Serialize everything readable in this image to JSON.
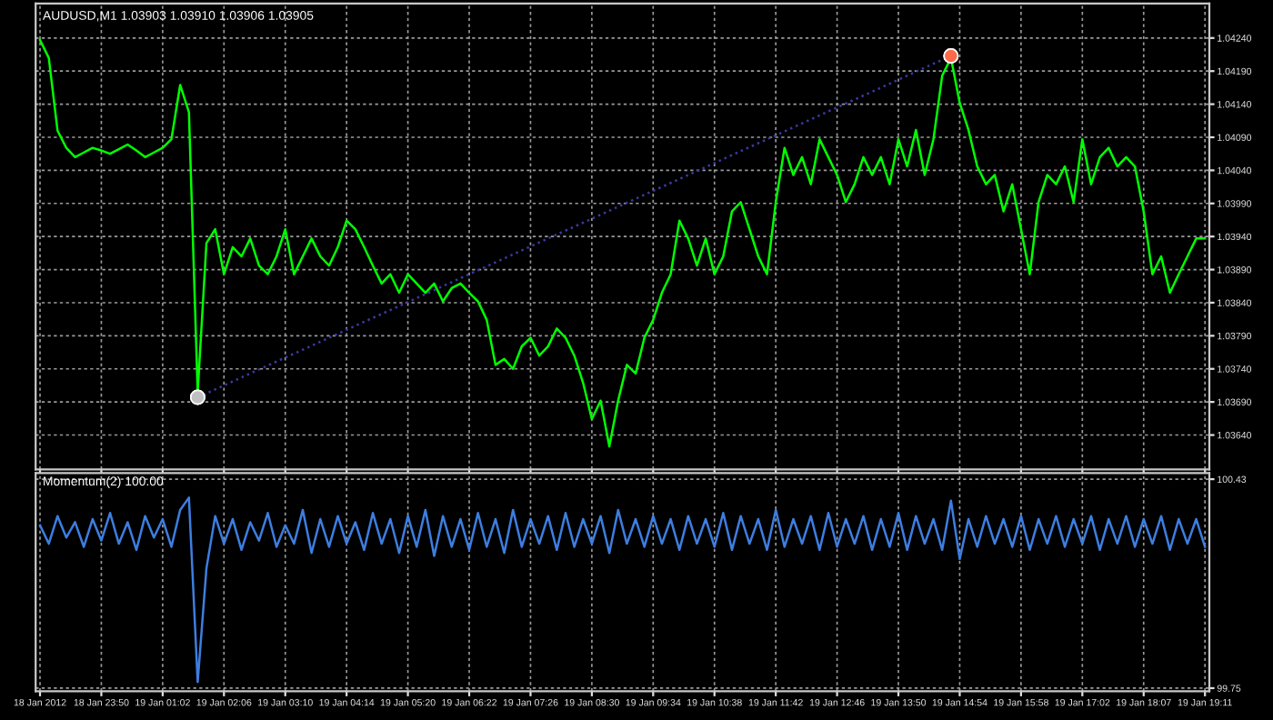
{
  "chart_data": [
    {
      "type": "line",
      "title": "AUDUSD,M1 1.03903 1.03910 1.03906 1.03905",
      "grid": true,
      "tick_labels": "y",
      "ylim": [
        1.03588,
        1.04292
      ],
      "categories": [
        null,
        null,
        null,
        null,
        null,
        null,
        null,
        null,
        null,
        null,
        null,
        null,
        null,
        null,
        null,
        null,
        null,
        null,
        null,
        null,
        null,
        null,
        null,
        null,
        null,
        null,
        null,
        null,
        null,
        null,
        null,
        null,
        null,
        null,
        null,
        null,
        null,
        null,
        null,
        null,
        null,
        null,
        null,
        null,
        null,
        null,
        null,
        null,
        null,
        null,
        null,
        null,
        null,
        null,
        null,
        null,
        null,
        null,
        null,
        null,
        null,
        null,
        null,
        null,
        null,
        null,
        null,
        null,
        null,
        null,
        null,
        null,
        null,
        null,
        null,
        null,
        null,
        null,
        null,
        null,
        null,
        null,
        null,
        null,
        null,
        null,
        null,
        null,
        null,
        null,
        null,
        null,
        null,
        null,
        null,
        null,
        null,
        null,
        null,
        null,
        null,
        null,
        null,
        null,
        null,
        null,
        null,
        null,
        null,
        null,
        null,
        null,
        null,
        null,
        null,
        null,
        null,
        null,
        null,
        null,
        null,
        null,
        null,
        null,
        null,
        null,
        null,
        null,
        null,
        null,
        null,
        null,
        null,
        null
      ],
      "yticks": [
        {
          "value": 1.0424,
          "label": "1.04240"
        },
        {
          "value": 1.0419,
          "label": "1.04190"
        },
        {
          "value": 1.0414,
          "label": "1.04140"
        },
        {
          "value": 1.0409,
          "label": "1.04090"
        },
        {
          "value": 1.0404,
          "label": "1.04040"
        },
        {
          "value": 1.0399,
          "label": "1.03990"
        },
        {
          "value": 1.0394,
          "label": "1.03940"
        },
        {
          "value": 1.0389,
          "label": "1.03890"
        },
        {
          "value": 1.0384,
          "label": "1.03840"
        },
        {
          "value": 1.0379,
          "label": "1.03790"
        },
        {
          "value": 1.0374,
          "label": "1.03740"
        },
        {
          "value": 1.0369,
          "label": "1.03690"
        },
        {
          "value": 1.0364,
          "label": "1.03640"
        }
      ],
      "series": [
        {
          "color": "#00ff00",
          "values": [
            1.04237,
            1.0421,
            1.041,
            1.04074,
            1.0406,
            1.04067,
            1.04074,
            1.0407,
            1.04065,
            1.04072,
            1.04079,
            1.0407,
            1.0406,
            1.04067,
            1.04074,
            1.04087,
            1.04169,
            1.04128,
            1.03705,
            1.0393,
            1.03951,
            1.03883,
            1.03924,
            1.0391,
            1.03937,
            1.03896,
            1.03883,
            1.0391,
            1.03951,
            1.03883,
            1.0391,
            1.03937,
            1.0391,
            1.03896,
            1.03924,
            1.03964,
            1.03951,
            1.03924,
            1.03896,
            1.03869,
            1.03883,
            1.03855,
            1.03883,
            1.03869,
            1.03855,
            1.03869,
            1.03842,
            1.03862,
            1.03869,
            1.03855,
            1.03842,
            1.03814,
            1.03746,
            1.03755,
            1.0374,
            1.03774,
            1.03787,
            1.0376,
            1.03774,
            1.03801,
            1.03787,
            1.0376,
            1.03719,
            1.03664,
            1.03692,
            1.03623,
            1.03692,
            1.03746,
            1.03733,
            1.03787,
            1.03814,
            1.03855,
            1.03883,
            1.03964,
            1.03937,
            1.03896,
            1.03937,
            1.03883,
            1.0391,
            1.03978,
            1.03992,
            1.03951,
            1.0391,
            1.03883,
            1.03992,
            1.04074,
            1.04033,
            1.0406,
            1.04019,
            1.04087,
            1.0406,
            1.04033,
            1.03992,
            1.04019,
            1.0406,
            1.04033,
            1.0406,
            1.04019,
            1.04087,
            1.04046,
            1.04101,
            1.04033,
            1.04087,
            1.04183,
            1.0421,
            1.04142,
            1.04101,
            1.04046,
            1.04019,
            1.04033,
            1.03978,
            1.04019,
            1.03951,
            1.03883,
            1.03992,
            1.04033,
            1.04019,
            1.04046,
            1.03992,
            1.04087,
            1.04019,
            1.0406,
            1.04074,
            1.04046,
            1.0406,
            1.04046,
            1.03978,
            1.03883,
            1.0391,
            1.03855,
            1.03883,
            1.0391,
            1.03937,
            1.03937
          ]
        },
        {
          "color": "#3a3aa0",
          "line_style": "dotted",
          "marker": "circle",
          "colors": [
            null,
            null,
            null,
            null,
            null,
            null,
            null,
            null,
            null,
            null,
            null,
            null,
            null,
            null,
            null,
            null,
            null,
            null,
            "#c0c0c0",
            null,
            null,
            null,
            null,
            null,
            null,
            null,
            null,
            null,
            null,
            null,
            null,
            null,
            null,
            null,
            null,
            null,
            null,
            null,
            null,
            null,
            null,
            null,
            null,
            null,
            null,
            null,
            null,
            null,
            null,
            null,
            null,
            null,
            null,
            null,
            null,
            null,
            null,
            null,
            null,
            null,
            null,
            null,
            null,
            null,
            null,
            null,
            null,
            null,
            null,
            null,
            null,
            null,
            null,
            null,
            null,
            null,
            null,
            null,
            null,
            null,
            null,
            null,
            null,
            null,
            null,
            null,
            null,
            null,
            null,
            null,
            null,
            null,
            null,
            null,
            null,
            null,
            null,
            null,
            null,
            null,
            null,
            null,
            null,
            null,
            "#ff6a4a",
            null,
            null,
            null,
            null,
            null,
            null,
            null,
            null,
            null,
            null,
            null,
            null,
            null,
            null,
            null,
            null,
            null,
            null,
            null,
            null,
            null,
            null,
            null,
            null,
            null,
            null,
            null,
            null,
            null
          ],
          "values": [
            null,
            null,
            null,
            null,
            null,
            null,
            null,
            null,
            null,
            null,
            null,
            null,
            null,
            null,
            null,
            null,
            null,
            null,
            1.03697,
            null,
            null,
            null,
            null,
            null,
            null,
            null,
            null,
            null,
            null,
            null,
            null,
            null,
            null,
            null,
            null,
            null,
            null,
            null,
            null,
            null,
            null,
            null,
            null,
            null,
            null,
            null,
            null,
            null,
            null,
            null,
            null,
            null,
            null,
            null,
            null,
            null,
            null,
            null,
            null,
            null,
            null,
            null,
            null,
            null,
            null,
            null,
            null,
            null,
            null,
            null,
            null,
            null,
            null,
            null,
            null,
            null,
            null,
            null,
            null,
            null,
            null,
            null,
            null,
            null,
            null,
            null,
            null,
            null,
            null,
            null,
            null,
            null,
            null,
            null,
            null,
            null,
            null,
            null,
            null,
            null,
            null,
            null,
            null,
            null,
            1.04213,
            null,
            null,
            null,
            null,
            null,
            null,
            null,
            null,
            null,
            null,
            null,
            null,
            null,
            null,
            null,
            null,
            null,
            null,
            null,
            null,
            null,
            null,
            null,
            null,
            null,
            null,
            null,
            null,
            null
          ]
        }
      ]
    },
    {
      "type": "line",
      "title": "Momentum(2) 100.00",
      "grid": true,
      "ylim": [
        99.74,
        100.45
      ],
      "categories": [
        "18 Jan 2012",
        null,
        null,
        null,
        null,
        null,
        null,
        "18 Jan 23:50",
        null,
        null,
        null,
        null,
        null,
        null,
        "19 Jan 01:02",
        null,
        null,
        null,
        null,
        null,
        null,
        "19 Jan 02:06",
        null,
        null,
        null,
        null,
        null,
        null,
        "19 Jan 03:10",
        null,
        null,
        null,
        null,
        null,
        null,
        "19 Jan 04:14",
        null,
        null,
        null,
        null,
        null,
        null,
        "19 Jan 05:20",
        null,
        null,
        null,
        null,
        null,
        null,
        "19 Jan 06:22",
        null,
        null,
        null,
        null,
        null,
        null,
        "19 Jan 07:26",
        null,
        null,
        null,
        null,
        null,
        null,
        "19 Jan 08:30",
        null,
        null,
        null,
        null,
        null,
        null,
        "19 Jan 09:34",
        null,
        null,
        null,
        null,
        null,
        null,
        "19 Jan 10:38",
        null,
        null,
        null,
        null,
        null,
        null,
        "19 Jan 11:42",
        null,
        null,
        null,
        null,
        null,
        null,
        "19 Jan 12:46",
        null,
        null,
        null,
        null,
        null,
        null,
        "19 Jan 13:50",
        null,
        null,
        null,
        null,
        null,
        null,
        "19 Jan 14:54",
        null,
        null,
        null,
        null,
        null,
        null,
        "19 Jan 15:58",
        null,
        null,
        null,
        null,
        null,
        null,
        "19 Jan 17:02",
        null,
        null,
        null,
        null,
        null,
        null,
        "19 Jan 18:07",
        null,
        null,
        null,
        null,
        null,
        null,
        "19 Jan 19:11"
      ],
      "yticks": [
        100.43,
        99.75
      ],
      "series": [
        {
          "color": "#3d7ee0",
          "values": [
            100.28,
            100.22,
            100.31,
            100.24,
            100.29,
            100.21,
            100.3,
            100.23,
            100.32,
            100.22,
            100.29,
            100.2,
            100.31,
            100.24,
            100.3,
            100.21,
            100.33,
            100.37,
            99.77,
            100.14,
            100.31,
            100.22,
            100.3,
            100.2,
            100.29,
            100.23,
            100.32,
            100.21,
            100.28,
            100.22,
            100.33,
            100.19,
            100.3,
            100.21,
            100.31,
            100.22,
            100.29,
            100.2,
            100.32,
            100.22,
            100.3,
            100.19,
            100.31,
            100.21,
            100.33,
            100.18,
            100.31,
            100.21,
            100.3,
            100.2,
            100.32,
            100.21,
            100.3,
            100.19,
            100.33,
            100.21,
            100.3,
            100.22,
            100.31,
            100.2,
            100.32,
            100.21,
            100.3,
            100.22,
            100.31,
            100.19,
            100.33,
            100.22,
            100.3,
            100.21,
            100.31,
            100.22,
            100.3,
            100.2,
            100.31,
            100.22,
            100.3,
            100.21,
            100.32,
            100.2,
            100.31,
            100.22,
            100.3,
            100.2,
            100.33,
            100.21,
            100.3,
            100.22,
            100.31,
            100.2,
            100.32,
            100.21,
            100.3,
            100.22,
            100.31,
            100.2,
            100.3,
            100.21,
            100.32,
            100.2,
            100.31,
            100.22,
            100.3,
            100.2,
            100.36,
            100.17,
            100.3,
            100.21,
            100.31,
            100.22,
            100.3,
            100.21,
            100.31,
            100.2,
            100.3,
            100.22,
            100.31,
            100.21,
            100.3,
            100.22,
            100.31,
            100.2,
            100.3,
            100.22,
            100.31,
            100.21,
            100.3,
            100.22,
            100.31,
            100.2,
            100.3,
            100.22,
            100.3,
            100.21
          ]
        }
      ]
    }
  ]
}
